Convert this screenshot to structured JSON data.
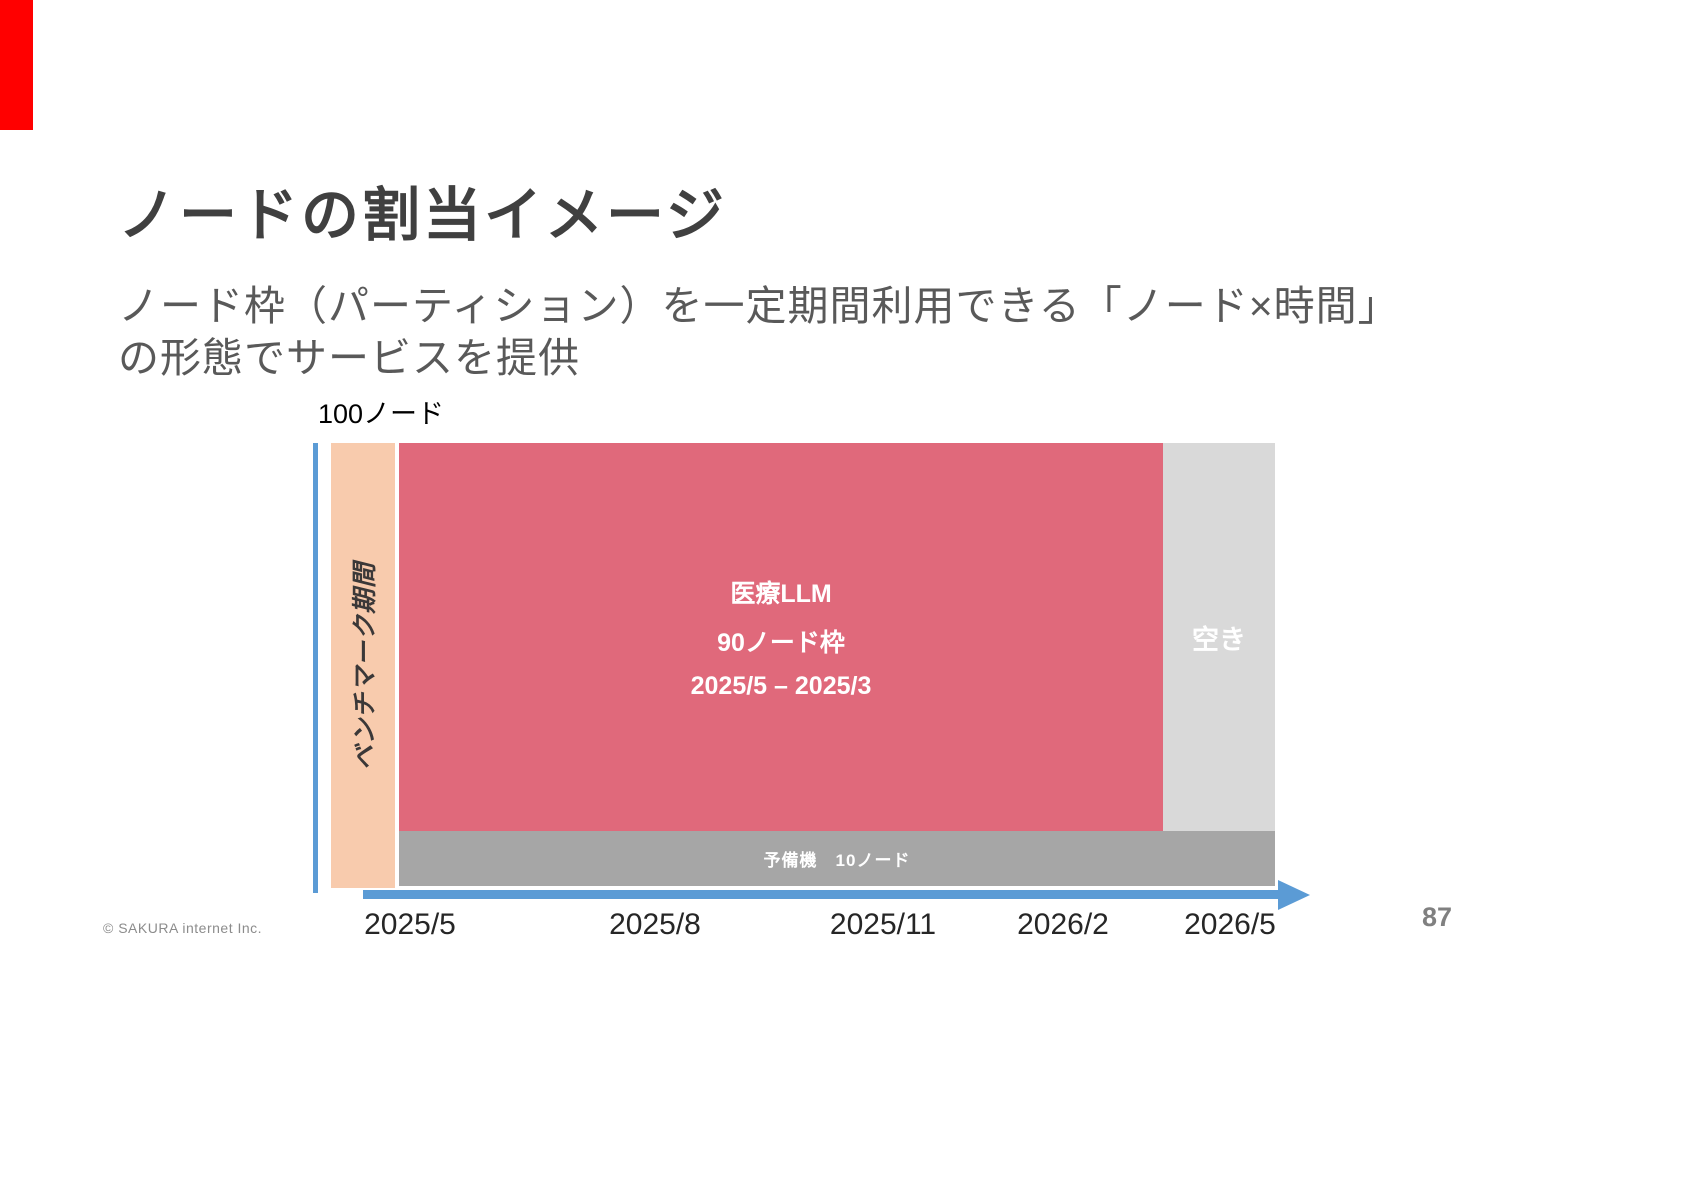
{
  "slide": {
    "title": "ノードの割当イメージ",
    "subtitle_line1": "ノード枠（パーティション）を一定期間利用できる「ノード×時間」",
    "subtitle_line2": "の形態でサービスを提供",
    "footer": "© SAKURA internet Inc.",
    "page_number": "87"
  },
  "diagram": {
    "capacity_label": "100ノード",
    "benchmark_period_label": "ベンチマーク期間",
    "allocation_block": {
      "line1": "医療LLM",
      "line2": "90ノード枠",
      "line3": "2025/5 – 2025/3"
    },
    "vacant_label": "空き",
    "spare_label": "予備機　10ノード",
    "x_ticks": [
      "2025/5",
      "2025/8",
      "2025/11",
      "2026/2",
      "2026/5"
    ],
    "colors": {
      "accent_strip": "#FF0000",
      "benchmark_bar": "#F8CBAD",
      "allocation_block": "#E0697B",
      "vacant_block": "#D9D9D9",
      "spare_bar": "#A6A6A6",
      "axis_arrow": "#5B9BD5"
    }
  }
}
